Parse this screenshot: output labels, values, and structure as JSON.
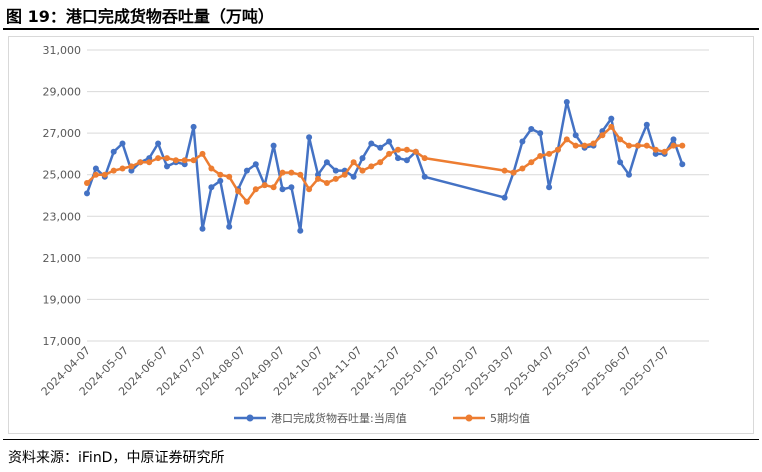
{
  "figure": {
    "title": "图 19：港口完成货物吞吐量（万吨）",
    "source": "资料来源：iFinD，中原证券研究所"
  },
  "colors": {
    "weekly": "#4472C4",
    "ma5": "#ED7D31",
    "grid": "#d9d9d9",
    "axis_text": "#595959"
  },
  "chart_data": {
    "type": "line",
    "title": "港口完成货物吞吐量（万吨）",
    "ylim": [
      17000,
      31000
    ],
    "y_ticks": [
      "17,000",
      "19,000",
      "21,000",
      "23,000",
      "25,000",
      "27,000",
      "29,000",
      "31,000"
    ],
    "x_range": [
      "2024-04-07",
      "2025-08-10"
    ],
    "x_ticks": [
      "2024-04-07",
      "2024-05-07",
      "2024-06-07",
      "2024-07-07",
      "2024-08-07",
      "2024-09-07",
      "2024-10-07",
      "2024-11-07",
      "2024-12-07",
      "2025-01-07",
      "2025-02-07",
      "2025-03-07",
      "2025-04-07",
      "2025-05-07",
      "2025-06-07",
      "2025-07-07"
    ],
    "series": [
      {
        "name": "港口完成货物吞吐量:当周值",
        "color": "#4472C4",
        "dates": [
          "2024-04-07",
          "2024-04-14",
          "2024-04-21",
          "2024-04-28",
          "2024-05-05",
          "2024-05-12",
          "2024-05-19",
          "2024-05-26",
          "2024-06-02",
          "2024-06-09",
          "2024-06-16",
          "2024-06-23",
          "2024-06-30",
          "2024-07-07",
          "2024-07-14",
          "2024-07-21",
          "2024-07-28",
          "2024-08-04",
          "2024-08-11",
          "2024-08-18",
          "2024-08-25",
          "2024-09-01",
          "2024-09-08",
          "2024-09-15",
          "2024-09-22",
          "2024-09-29",
          "2024-10-06",
          "2024-10-13",
          "2024-10-20",
          "2024-10-27",
          "2024-11-03",
          "2024-11-10",
          "2024-11-17",
          "2024-11-24",
          "2024-12-01",
          "2024-12-08",
          "2024-12-15",
          "2024-12-22",
          "2024-12-29",
          "2025-03-02",
          "2025-03-09",
          "2025-03-16",
          "2025-03-23",
          "2025-03-30",
          "2025-04-06",
          "2025-04-13",
          "2025-04-20",
          "2025-04-27",
          "2025-05-04",
          "2025-05-11",
          "2025-05-18",
          "2025-05-25",
          "2025-06-01",
          "2025-06-08",
          "2025-06-15",
          "2025-06-22",
          "2025-06-29",
          "2025-07-06",
          "2025-07-13",
          "2025-07-20"
        ],
        "values": [
          24100,
          25300,
          24900,
          26100,
          26500,
          25200,
          25600,
          25800,
          26500,
          25400,
          25600,
          25500,
          27300,
          22400,
          24400,
          24700,
          22500,
          24300,
          25200,
          25500,
          24500,
          26400,
          24300,
          24400,
          22300,
          26800,
          25000,
          25600,
          25200,
          25200,
          24900,
          25800,
          26500,
          26300,
          26600,
          25800,
          25700,
          26100,
          24900,
          23900,
          25100,
          26600,
          27200,
          27000,
          24400,
          26200,
          28500,
          26900,
          26300,
          26400,
          27100,
          27700,
          25600,
          25000,
          26400,
          27400,
          26000,
          26000,
          26700,
          25500
        ]
      },
      {
        "name": "5期均值",
        "color": "#ED7D31",
        "dates": [
          "2024-04-07",
          "2024-04-14",
          "2024-04-21",
          "2024-04-28",
          "2024-05-05",
          "2024-05-12",
          "2024-05-19",
          "2024-05-26",
          "2024-06-02",
          "2024-06-09",
          "2024-06-16",
          "2024-06-23",
          "2024-06-30",
          "2024-07-07",
          "2024-07-14",
          "2024-07-21",
          "2024-07-28",
          "2024-08-04",
          "2024-08-11",
          "2024-08-18",
          "2024-08-25",
          "2024-09-01",
          "2024-09-08",
          "2024-09-15",
          "2024-09-22",
          "2024-09-29",
          "2024-10-06",
          "2024-10-13",
          "2024-10-20",
          "2024-10-27",
          "2024-11-03",
          "2024-11-10",
          "2024-11-17",
          "2024-11-24",
          "2024-12-01",
          "2024-12-08",
          "2024-12-15",
          "2024-12-22",
          "2024-12-29",
          "2025-03-02",
          "2025-03-09",
          "2025-03-16",
          "2025-03-23",
          "2025-03-30",
          "2025-04-06",
          "2025-04-13",
          "2025-04-20",
          "2025-04-27",
          "2025-05-04",
          "2025-05-11",
          "2025-05-18",
          "2025-05-25",
          "2025-06-01",
          "2025-06-08",
          "2025-06-15",
          "2025-06-22",
          "2025-06-29",
          "2025-07-06",
          "2025-07-13",
          "2025-07-20"
        ],
        "values": [
          24600,
          25000,
          25000,
          25200,
          25300,
          25400,
          25600,
          25600,
          25800,
          25800,
          25700,
          25700,
          25700,
          26000,
          25300,
          25000,
          24900,
          24200,
          23700,
          24300,
          24500,
          24400,
          25100,
          25100,
          25000,
          24300,
          24800,
          24600,
          24800,
          25000,
          25600,
          25200,
          25400,
          25600,
          26000,
          26200,
          26200,
          26100,
          25800,
          25200,
          25100,
          25300,
          25600,
          25900,
          26000,
          26200,
          26700,
          26400,
          26400,
          26500,
          26900,
          27300,
          26700,
          26400,
          26400,
          26400,
          26200,
          26100,
          26400,
          26400
        ]
      }
    ],
    "legend": [
      "港口完成货物吞吐量:当周值",
      "5期均值"
    ],
    "legend_position": "bottom"
  }
}
